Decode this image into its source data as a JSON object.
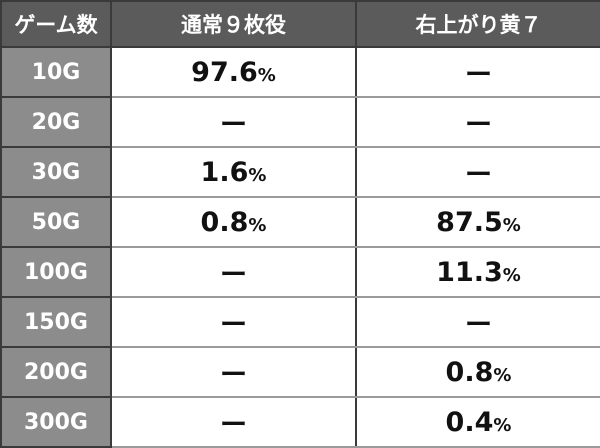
{
  "headers": [
    "ゲーム数",
    "通常９枚役",
    "右上がり黄７"
  ],
  "rows": [
    {
      "games": "10G",
      "normal": "97.6",
      "normal_unit": "%",
      "yellow7": "ー",
      "yellow7_unit": ""
    },
    {
      "games": "20G",
      "normal": "ー",
      "normal_unit": "",
      "yellow7": "ー",
      "yellow7_unit": ""
    },
    {
      "games": "30G",
      "normal": "1.6",
      "normal_unit": "%",
      "yellow7": "ー",
      "yellow7_unit": ""
    },
    {
      "games": "50G",
      "normal": "0.8",
      "normal_unit": "%",
      "yellow7": "87.5",
      "yellow7_unit": "%"
    },
    {
      "games": "100G",
      "normal": "ー",
      "normal_unit": "",
      "yellow7": "11.3",
      "yellow7_unit": "%"
    },
    {
      "games": "150G",
      "normal": "ー",
      "normal_unit": "",
      "yellow7": "ー",
      "yellow7_unit": ""
    },
    {
      "games": "200G",
      "normal": "ー",
      "normal_unit": "",
      "yellow7": "0.8",
      "yellow7_unit": "%"
    },
    {
      "games": "300G",
      "normal": "ー",
      "normal_unit": "",
      "yellow7": "0.4",
      "yellow7_unit": "%"
    }
  ]
}
